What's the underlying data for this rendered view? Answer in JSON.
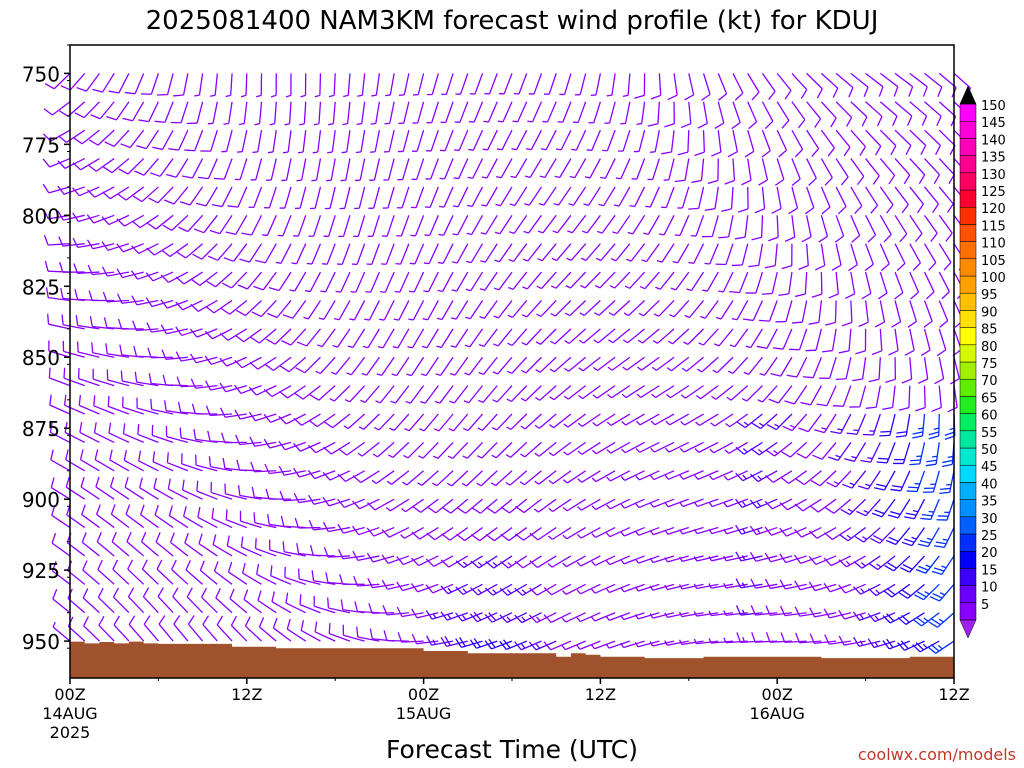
{
  "chart_data": {
    "type": "wind-barb-profile",
    "title": "2025081400 NAM3KM forecast wind profile (kt) for KDUJ",
    "xlabel": "Forecast Time (UTC)",
    "ylabel": "",
    "credit": "coolwx.com/models",
    "x_range_hours": [
      0,
      60
    ],
    "y_range_hpa": [
      963,
      740
    ],
    "y_ticks": [
      {
        "value": 750,
        "label": "750"
      },
      {
        "value": 775,
        "label": "775"
      },
      {
        "value": 800,
        "label": "800"
      },
      {
        "value": 825,
        "label": "825"
      },
      {
        "value": 850,
        "label": "850"
      },
      {
        "value": 875,
        "label": "875"
      },
      {
        "value": 900,
        "label": "900"
      },
      {
        "value": 925,
        "label": "925"
      },
      {
        "value": 950,
        "label": "950"
      }
    ],
    "x_ticks": [
      {
        "hour": 0,
        "label": "00Z",
        "date": "14AUG",
        "year": "2025"
      },
      {
        "hour": 12,
        "label": "12Z",
        "date": "",
        "year": ""
      },
      {
        "hour": 24,
        "label": "00Z",
        "date": "15AUG",
        "year": ""
      },
      {
        "hour": 36,
        "label": "12Z",
        "date": "",
        "year": ""
      },
      {
        "hour": 48,
        "label": "00Z",
        "date": "16AUG",
        "year": ""
      },
      {
        "hour": 60,
        "label": "12Z",
        "date": "",
        "year": ""
      }
    ],
    "barb_levels_hpa": [
      740,
      750,
      760,
      770,
      780,
      790,
      800,
      810,
      820,
      830,
      840,
      850,
      860,
      870,
      880,
      890,
      900,
      910,
      920,
      930,
      940,
      950
    ],
    "barb_hours": [
      0,
      1,
      2,
      3,
      4,
      5,
      6,
      7,
      8,
      9,
      10,
      11,
      12,
      13,
      14,
      15,
      16,
      17,
      18,
      19,
      20,
      21,
      22,
      23,
      24,
      25,
      26,
      27,
      28,
      29,
      30,
      31,
      32,
      33,
      34,
      35,
      36,
      37,
      38,
      39,
      40,
      41,
      42,
      43,
      44,
      45,
      46,
      47,
      48,
      49,
      50,
      51,
      52,
      53,
      54,
      55,
      56,
      57,
      58,
      59,
      60
    ],
    "surface_pressure": {
      "hours": [
        0,
        1,
        2,
        3,
        4,
        5,
        6,
        7,
        8,
        9,
        10,
        11,
        12,
        13,
        14,
        15,
        16,
        17,
        18,
        19,
        20,
        21,
        22,
        23,
        24,
        25,
        26,
        27,
        28,
        29,
        30,
        31,
        32,
        33,
        34,
        35,
        36,
        37,
        38,
        39,
        40,
        41,
        42,
        43,
        44,
        45,
        46,
        47,
        48,
        49,
        50,
        51,
        52,
        53,
        54,
        55,
        56,
        57,
        58,
        59,
        60
      ],
      "hpa": [
        950.2,
        950.8,
        950.3,
        950.8,
        950.2,
        950.8,
        951.0,
        951.0,
        951.0,
        951.0,
        951.0,
        952.0,
        952.0,
        952.0,
        952.5,
        952.5,
        952.5,
        952.5,
        952.5,
        952.5,
        952.5,
        952.5,
        952.5,
        952.5,
        953.5,
        953.5,
        953.5,
        954.3,
        954.3,
        954.3,
        954.3,
        954.3,
        954.3,
        955.5,
        954.3,
        954.8,
        955.5,
        955.5,
        955.5,
        956.0,
        956.0,
        956.0,
        956.0,
        955.5,
        955.5,
        955.5,
        955.5,
        955.5,
        955.5,
        955.5,
        955.5,
        956.0,
        956.0,
        956.0,
        956.0,
        956.0,
        956.0,
        955.5,
        955.5,
        955.5,
        955.5
      ]
    },
    "terrain_color": "#a0522d",
    "colorbar": {
      "labels": [
        "5",
        "10",
        "15",
        "20",
        "25",
        "30",
        "35",
        "40",
        "45",
        "50",
        "55",
        "60",
        "65",
        "70",
        "75",
        "80",
        "85",
        "90",
        "95",
        "100",
        "105",
        "110",
        "115",
        "120",
        "125",
        "130",
        "135",
        "140",
        "145",
        "150"
      ],
      "colors": [
        "#8a00ff",
        "#6a00ff",
        "#3c00ff",
        "#0000ff",
        "#0030ff",
        "#0060ff",
        "#0090ff",
        "#00b0ff",
        "#00d8ff",
        "#00e8d0",
        "#00e8a0",
        "#00ee60",
        "#20ee20",
        "#60ee00",
        "#a0f000",
        "#d8f800",
        "#ffff00",
        "#ffe000",
        "#ffc000",
        "#ffa000",
        "#ff8c00",
        "#ff7000",
        "#ff5000",
        "#ff3000",
        "#ff0030",
        "#ff0060",
        "#ff0090",
        "#ff00b8",
        "#ff00d8",
        "#ff00ff"
      ]
    }
  }
}
